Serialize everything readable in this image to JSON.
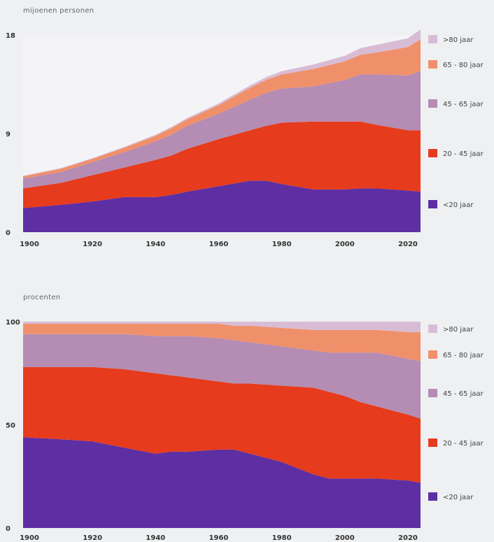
{
  "chart_data": [
    {
      "type": "area",
      "stacked": true,
      "ylabel": "mijoenen personen",
      "ylim": [
        0,
        18
      ],
      "yticks": [
        0,
        9,
        18
      ],
      "xticks": [
        1900,
        1920,
        1940,
        1960,
        1980,
        2000,
        2020
      ],
      "xlim": [
        1898,
        2024
      ],
      "grid": false,
      "legend_position": "right",
      "x": [
        1898,
        1910,
        1920,
        1930,
        1940,
        1945,
        1950,
        1960,
        1970,
        1975,
        1980,
        1990,
        2000,
        2005,
        2010,
        2020,
        2024
      ],
      "series": [
        {
          "name": "<20 jaar",
          "color": "#5e2fa3",
          "values": [
            2.2,
            2.5,
            2.8,
            3.2,
            3.2,
            3.4,
            3.7,
            4.2,
            4.7,
            4.7,
            4.4,
            3.9,
            3.9,
            4.0,
            4.0,
            3.8,
            3.7
          ]
        },
        {
          "name": "20 - 45 jaar",
          "color": "#e63b1c",
          "values": [
            1.8,
            2.0,
            2.4,
            2.7,
            3.4,
            3.6,
            3.9,
            4.3,
            4.6,
            5.0,
            5.6,
            6.2,
            6.2,
            6.1,
            5.8,
            5.5,
            5.6
          ]
        },
        {
          "name": "45 - 65 jaar",
          "color": "#b48cb4",
          "values": [
            0.9,
            1.0,
            1.2,
            1.4,
            1.7,
            1.9,
            2.1,
            2.3,
            2.8,
            3.0,
            3.1,
            3.2,
            3.8,
            4.3,
            4.6,
            5.0,
            5.4
          ]
        },
        {
          "name": "65 - 80 jaar",
          "color": "#f0906a",
          "values": [
            0.2,
            0.3,
            0.3,
            0.4,
            0.5,
            0.6,
            0.6,
            0.8,
            1.1,
            1.2,
            1.3,
            1.6,
            1.7,
            1.8,
            2.0,
            2.6,
            2.9
          ]
        },
        {
          "name": ">80 jaar",
          "color": "#d8bcd6",
          "values": [
            0.05,
            0.05,
            0.06,
            0.08,
            0.1,
            0.1,
            0.11,
            0.15,
            0.2,
            0.25,
            0.3,
            0.4,
            0.5,
            0.6,
            0.7,
            0.8,
            0.9
          ]
        }
      ],
      "legend": [
        ">80 jaar",
        "65 - 80 jaar",
        "45 - 65 jaar",
        "20 - 45 jaar",
        "<20 jaar"
      ]
    },
    {
      "type": "area",
      "stacked": true,
      "ylabel": "procenten",
      "ylim": [
        0,
        100
      ],
      "yticks": [
        0,
        50,
        100
      ],
      "xticks": [
        1900,
        1920,
        1940,
        1960,
        1980,
        2000,
        2020
      ],
      "xlim": [
        1898,
        2024
      ],
      "grid": false,
      "legend_position": "right",
      "x": [
        1898,
        1910,
        1920,
        1930,
        1940,
        1945,
        1950,
        1960,
        1965,
        1970,
        1980,
        1990,
        1995,
        2000,
        2005,
        2010,
        2020,
        2024
      ],
      "series": [
        {
          "name": "<20 jaar",
          "color": "#5e2fa3",
          "values": [
            44,
            43,
            42,
            39,
            36,
            37,
            37,
            38,
            38,
            36,
            32,
            26,
            24,
            24,
            24,
            24,
            23,
            22
          ]
        },
        {
          "name": "20 - 45 jaar",
          "color": "#e63b1c",
          "values": [
            34,
            35,
            36,
            38,
            39,
            37,
            36,
            33,
            32,
            34,
            37,
            42,
            42,
            40,
            37,
            35,
            32,
            31
          ]
        },
        {
          "name": "45 - 65 jaar",
          "color": "#b48cb4",
          "values": [
            16,
            16,
            16,
            17,
            18,
            19,
            20,
            21,
            21,
            20,
            19,
            18,
            19,
            21,
            24,
            26,
            27,
            28
          ]
        },
        {
          "name": "65 - 80 jaar",
          "color": "#f0906a",
          "values": [
            5,
            5,
            5,
            5,
            6,
            6,
            6,
            7,
            7,
            8,
            9,
            10,
            11,
            11,
            11,
            11,
            13,
            14
          ]
        },
        {
          "name": ">80 jaar",
          "color": "#d8bcd6",
          "values": [
            1,
            1,
            1,
            1,
            1,
            1,
            1,
            1,
            2,
            2,
            3,
            4,
            4,
            4,
            4,
            4,
            5,
            5
          ]
        }
      ],
      "legend": [
        ">80 jaar",
        "65 - 80 jaar",
        "45 - 65 jaar",
        "20 - 45 jaar",
        "<20 jaar"
      ]
    }
  ]
}
